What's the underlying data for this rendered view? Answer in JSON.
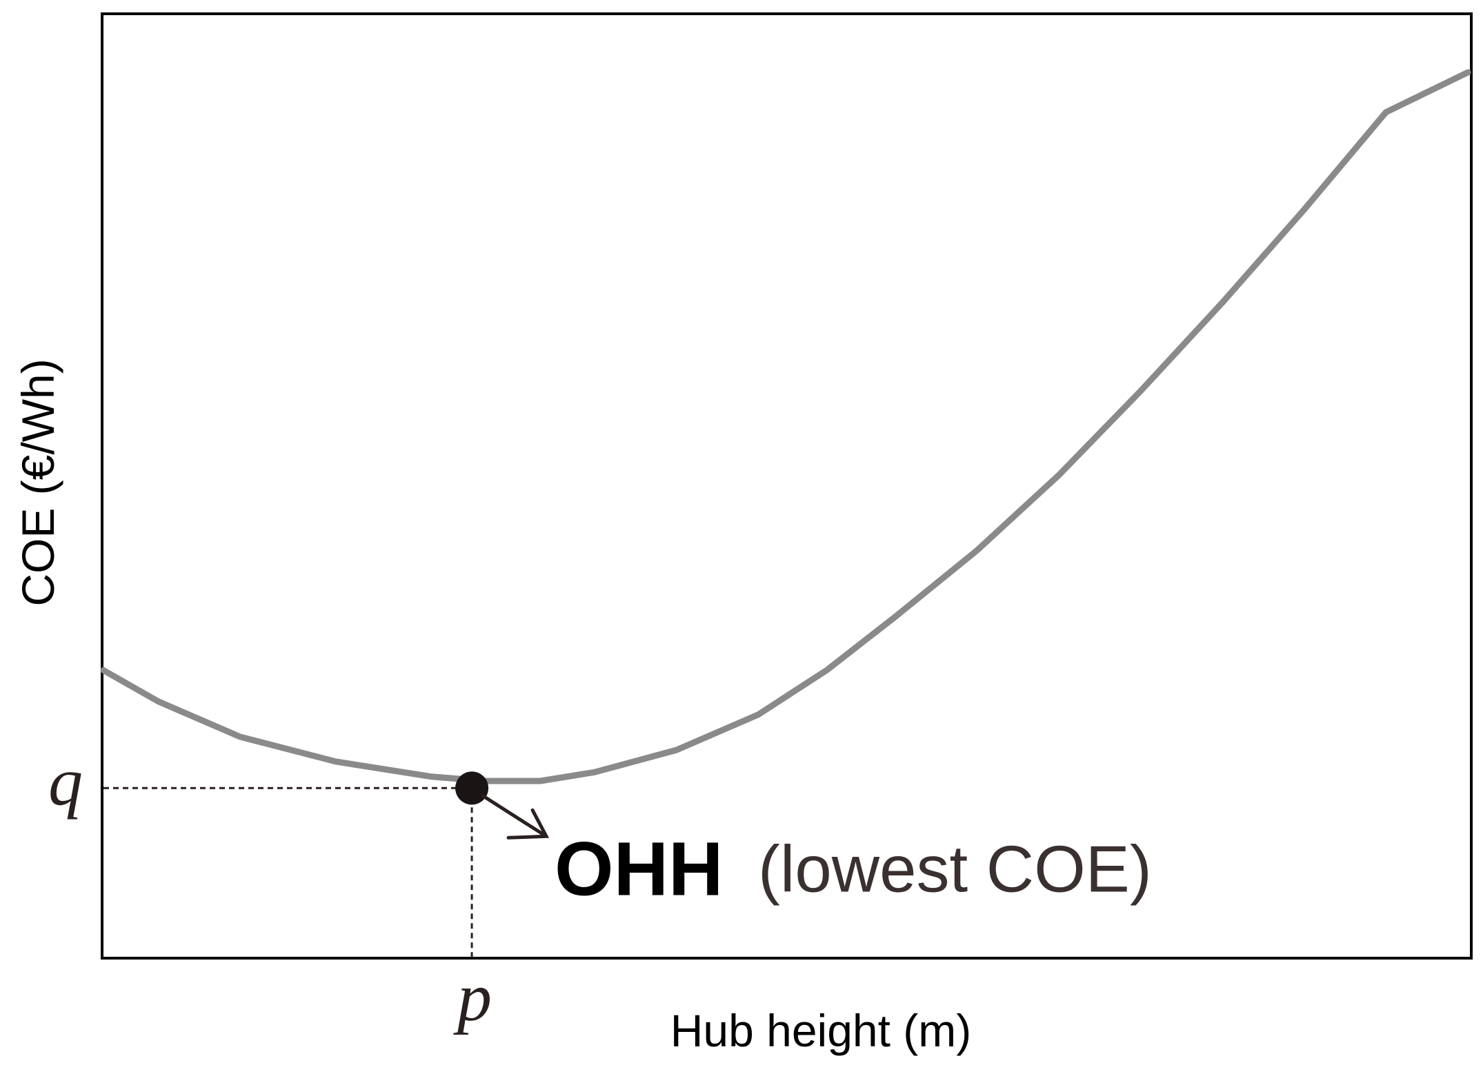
{
  "chart_data": {
    "type": "line",
    "title": "",
    "xlabel": "Hub height (m)",
    "ylabel": "COE (€/Wh)",
    "x_ticks": [
      "p"
    ],
    "y_ticks": [
      "q"
    ],
    "grid": false,
    "xlim": [
      0,
      1
    ],
    "ylim": [
      0,
      1
    ],
    "series": [
      {
        "color": "#8a8a8a",
        "x": [
          0.0,
          0.04,
          0.1,
          0.17,
          0.24,
          0.28,
          0.32,
          0.36,
          0.42,
          0.48,
          0.53,
          0.58,
          0.64,
          0.7,
          0.76,
          0.82,
          0.88,
          0.94,
          1.0
        ],
        "y": [
          0.325,
          0.29,
          0.25,
          0.222,
          0.205,
          0.2,
          0.2,
          0.21,
          0.235,
          0.275,
          0.325,
          0.385,
          0.46,
          0.545,
          0.64,
          0.74,
          0.845,
          0.955,
          1.0
        ]
      }
    ],
    "annotations": [
      {
        "label_bold": "OHH",
        "label": "(lowest COE)",
        "point": {
          "x": 0.27,
          "y": 0.192,
          "x_label": "p",
          "y_label": "q"
        }
      }
    ]
  }
}
